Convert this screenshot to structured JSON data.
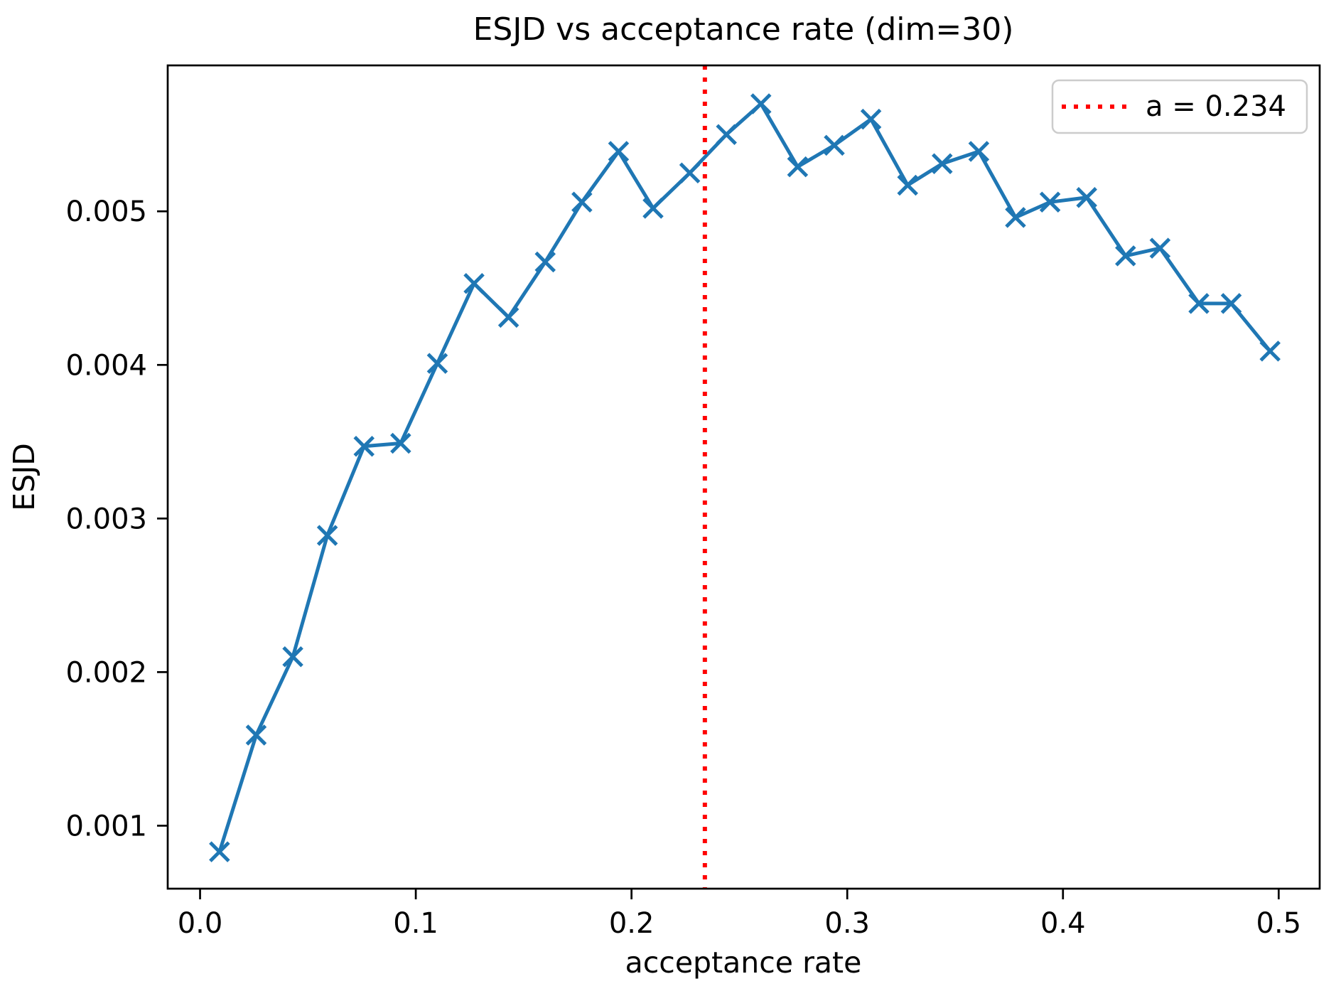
{
  "figure": {
    "background": "#ffffff",
    "spine_color": "#000000",
    "tick_color": "#000000"
  },
  "chart_data": {
    "type": "line",
    "title": "ESJD vs acceptance rate (dim=30)",
    "xlabel": "acceptance rate",
    "ylabel": "ESJD",
    "xlim": [
      -0.015,
      0.519
    ],
    "ylim": [
      0.00059,
      0.00595
    ],
    "grid": false,
    "xticks": [
      0.0,
      0.1,
      0.2,
      0.3,
      0.4,
      0.5
    ],
    "xtick_labels": [
      "0.0",
      "0.1",
      "0.2",
      "0.3",
      "0.4",
      "0.5"
    ],
    "yticks": [
      0.001,
      0.002,
      0.003,
      0.004,
      0.005
    ],
    "ytick_labels": [
      "0.001",
      "0.002",
      "0.003",
      "0.004",
      "0.005"
    ],
    "series": [
      {
        "name": "ESJD",
        "color": "#1f77b4",
        "marker": "x",
        "x": [
          0.009,
          0.026,
          0.043,
          0.059,
          0.076,
          0.093,
          0.11,
          0.127,
          0.143,
          0.16,
          0.177,
          0.194,
          0.21,
          0.227,
          0.244,
          0.26,
          0.277,
          0.294,
          0.311,
          0.328,
          0.344,
          0.361,
          0.378,
          0.394,
          0.411,
          0.429,
          0.445,
          0.463,
          0.478,
          0.496
        ],
        "y": [
          0.00083,
          0.00159,
          0.0021,
          0.00289,
          0.00347,
          0.00349,
          0.00401,
          0.00453,
          0.00431,
          0.00467,
          0.00506,
          0.00539,
          0.00502,
          0.00525,
          0.0055,
          0.0057,
          0.00529,
          0.00543,
          0.0056,
          0.00517,
          0.00531,
          0.00539,
          0.00496,
          0.00506,
          0.00509,
          0.00471,
          0.00476,
          0.0044,
          0.0044,
          0.00409
        ]
      }
    ],
    "vline": {
      "x": 0.234,
      "color": "#ff0000",
      "linestyle": "dotted",
      "label": "a = 0.234"
    },
    "legend": {
      "position": "upper right",
      "entries": [
        {
          "label": "a = 0.234",
          "color": "#ff0000",
          "linestyle": "dotted"
        }
      ]
    }
  }
}
